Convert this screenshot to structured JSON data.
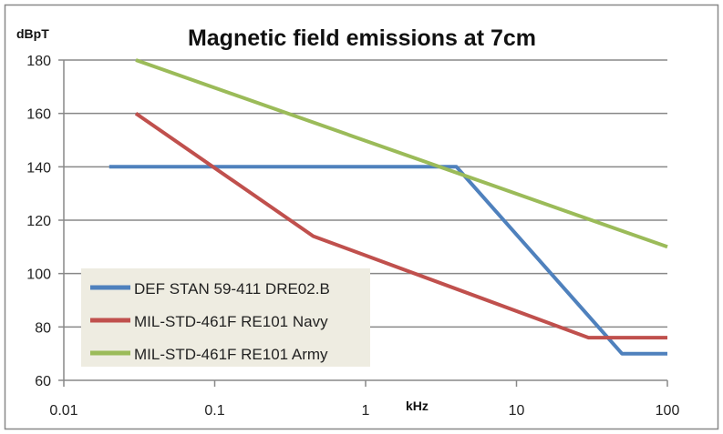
{
  "chart_data": {
    "type": "line",
    "title": "Magnetic field emissions at 7cm",
    "xlabel": "kHz",
    "ylabel": "dBpT",
    "x_scale": "log",
    "xlim": [
      0.01,
      100
    ],
    "ylim": [
      60,
      180
    ],
    "x_ticks": [
      "0.01",
      "0.1",
      "1",
      "10",
      "100"
    ],
    "y_ticks": [
      "60",
      "80",
      "100",
      "120",
      "140",
      "160",
      "180"
    ],
    "grid": "horizontal",
    "legend_position": "bottom-left",
    "series": [
      {
        "name": "DEF STAN 59-411 DRE02.B",
        "color": "#4f81bd",
        "x": [
          0.02,
          4,
          50,
          100
        ],
        "y": [
          140,
          140,
          70,
          70
        ]
      },
      {
        "name": "MIL-STD-461F RE101 Navy",
        "color": "#c0504d",
        "x": [
          0.03,
          0.45,
          30,
          100
        ],
        "y": [
          160,
          114,
          76,
          76
        ]
      },
      {
        "name": "MIL-STD-461F RE101 Army",
        "color": "#9bbb59",
        "x": [
          0.03,
          100
        ],
        "y": [
          180,
          110
        ]
      }
    ]
  }
}
